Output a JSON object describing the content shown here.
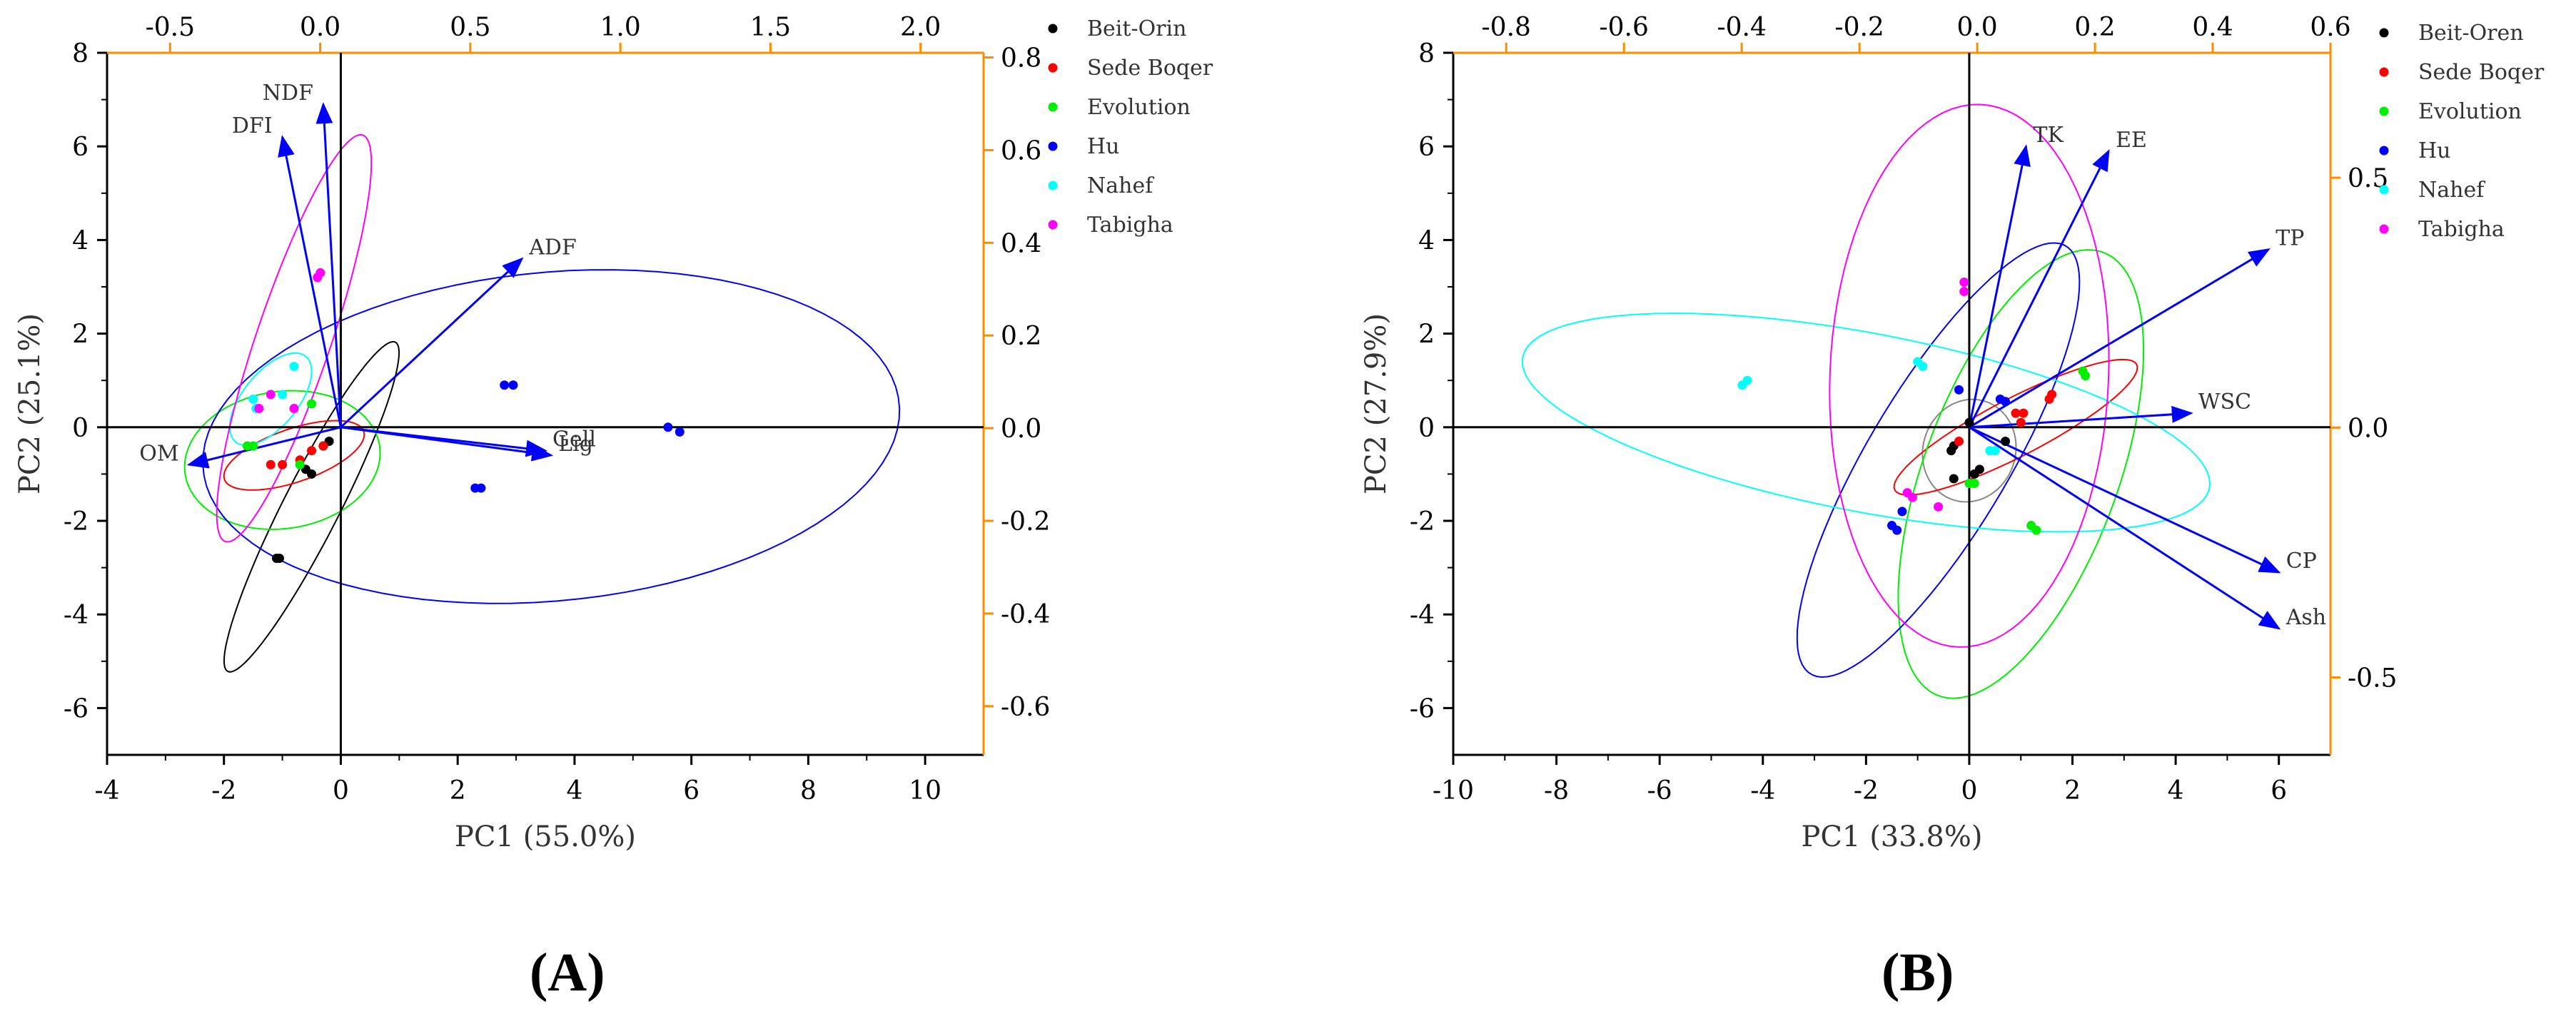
{
  "colors": {
    "axis": "#000000",
    "secondary_axis": "#FF8C00",
    "arrow": "#0000FF",
    "groups": {
      "Beit-Orin": "#000000",
      "Sede Boqer": "#FF0000",
      "Evolution": "#00EE00",
      "Hu": "#0000FF",
      "Nahef": "#00FFFF",
      "Tabigha": "#FF00FF"
    }
  },
  "chart_data": [
    {
      "type": "scatter",
      "panel_label": "(A)",
      "xlabel": "PC1 (55.0%)",
      "ylabel": "PC2 (25.1%)",
      "xlim": [
        -4,
        11
      ],
      "ylim": [
        -7,
        8
      ],
      "xticks": [
        -4,
        -2,
        0,
        2,
        4,
        6,
        8,
        10
      ],
      "yticks": [
        -6,
        -4,
        -2,
        0,
        2,
        4,
        6,
        8
      ],
      "x2lim": [
        -0.71,
        2.21
      ],
      "y2lim": [
        -0.705,
        0.81
      ],
      "x2ticks": [
        "-0.5",
        "0.0",
        "0.5",
        "1.0",
        "1.5",
        "2.0"
      ],
      "y2ticks": [
        "-0.6",
        "-0.4",
        "-0.2",
        "0.0",
        "0.2",
        "0.4",
        "0.6",
        "0.8"
      ],
      "legend": [
        "Beit-Orin",
        "Sede Boqer",
        "Evolution",
        "Hu",
        "Nahef",
        "Tabigha"
      ],
      "series": [
        {
          "name": "Beit-Orin",
          "points": [
            [
              -0.2,
              -0.3
            ],
            [
              -0.3,
              -0.4
            ],
            [
              -0.6,
              -0.9
            ],
            [
              -0.5,
              -1.0
            ],
            [
              -1.1,
              -2.8
            ],
            [
              -1.05,
              -2.8
            ]
          ]
        },
        {
          "name": "Sede Boqer",
          "points": [
            [
              -1.2,
              -0.8
            ],
            [
              -1.0,
              -0.8
            ],
            [
              -0.5,
              -0.5
            ],
            [
              -0.3,
              -0.4
            ],
            [
              -0.7,
              -0.7
            ]
          ]
        },
        {
          "name": "Evolution",
          "points": [
            [
              -1.6,
              -0.4
            ],
            [
              -1.5,
              -0.4
            ],
            [
              -0.5,
              0.5
            ],
            [
              -0.7,
              -0.8
            ]
          ]
        },
        {
          "name": "Hu",
          "points": [
            [
              2.8,
              0.9
            ],
            [
              2.95,
              0.9
            ],
            [
              2.3,
              -1.3
            ],
            [
              2.4,
              -1.3
            ],
            [
              5.6,
              0.0
            ],
            [
              5.8,
              -0.1
            ]
          ]
        },
        {
          "name": "Nahef",
          "points": [
            [
              -0.8,
              1.3
            ],
            [
              -1.0,
              0.7
            ],
            [
              -1.5,
              0.6
            ],
            [
              -1.45,
              0.4
            ]
          ]
        },
        {
          "name": "Tabigha",
          "points": [
            [
              -0.35,
              3.3
            ],
            [
              -0.4,
              3.2
            ],
            [
              -1.2,
              0.7
            ],
            [
              -0.8,
              0.4
            ],
            [
              -1.4,
              0.4
            ]
          ]
        }
      ],
      "ellipses": [
        {
          "group": "Beit-Orin",
          "center": [
            -0.5,
            -1.7
          ],
          "semi_major": 3.8,
          "semi_minor": 0.5,
          "angle_deg": 68
        },
        {
          "group": "Sede Boqer",
          "center": [
            -0.8,
            -0.6
          ],
          "semi_major": 1.3,
          "semi_minor": 0.55,
          "angle_deg": 25
        },
        {
          "group": "Evolution",
          "center": [
            -1.0,
            -0.7
          ],
          "semi_major": 1.7,
          "semi_minor": 1.45,
          "angle_deg": 20
        },
        {
          "group": "Hu",
          "center": [
            3.6,
            -0.2
          ],
          "semi_major": 6.0,
          "semi_minor": 3.5,
          "angle_deg": 8
        },
        {
          "group": "Nahef",
          "center": [
            -1.2,
            0.6
          ],
          "semi_major": 1.1,
          "semi_minor": 0.5,
          "angle_deg": 60
        },
        {
          "group": "Tabigha",
          "center": [
            -0.8,
            1.9
          ],
          "semi_major": 4.5,
          "semi_minor": 0.65,
          "angle_deg": 75
        }
      ],
      "loadings": [
        {
          "name": "NDF",
          "x": -0.3,
          "y": 6.9
        },
        {
          "name": "DFI",
          "x": -1.0,
          "y": 6.2
        },
        {
          "name": "ADF",
          "x": 3.1,
          "y": 3.6
        },
        {
          "name": "Gell",
          "x": 3.5,
          "y": -0.5
        },
        {
          "name": "Lig",
          "x": 3.6,
          "y": -0.6
        },
        {
          "name": "OM",
          "x": -2.6,
          "y": -0.8
        }
      ]
    },
    {
      "type": "scatter",
      "panel_label": "(B)",
      "xlabel": "PC1 (33.8%)",
      "ylabel": "PC2 (27.9%)",
      "xlim": [
        -10,
        7
      ],
      "ylim": [
        -7,
        8
      ],
      "xticks": [
        -10,
        -8,
        -6,
        -4,
        -2,
        0,
        2,
        4,
        6
      ],
      "yticks": [
        -6,
        -4,
        -2,
        0,
        2,
        4,
        6,
        8
      ],
      "x2lim": [
        -0.89,
        0.6
      ],
      "y2lim": [
        -0.655,
        0.75
      ],
      "x2ticks": [
        "-0.8",
        "-0.6",
        "-0.4",
        "-0.2",
        "0.0",
        "0.2",
        "0.4",
        "0.6"
      ],
      "y2ticks": [
        "-0.5",
        "0.0",
        "0.5"
      ],
      "legend": [
        "Beit-Oren",
        "Sede Boqer",
        "Evolution",
        "Hu",
        "Nahef",
        "Tabigha"
      ],
      "series": [
        {
          "name": "Beit-Oren",
          "points": [
            [
              0.0,
              0.1
            ],
            [
              -0.3,
              -0.4
            ],
            [
              -0.35,
              -0.5
            ],
            [
              -0.3,
              -1.1
            ],
            [
              0.1,
              -1.0
            ],
            [
              0.2,
              -0.9
            ],
            [
              0.7,
              -0.3
            ]
          ]
        },
        {
          "name": "Sede Boqer",
          "points": [
            [
              0.9,
              0.3
            ],
            [
              1.0,
              0.1
            ],
            [
              1.05,
              0.3
            ],
            [
              1.6,
              0.7
            ],
            [
              1.55,
              0.6
            ],
            [
              -0.2,
              -0.3
            ]
          ]
        },
        {
          "name": "Evolution",
          "points": [
            [
              2.2,
              1.2
            ],
            [
              2.25,
              1.1
            ],
            [
              1.2,
              -2.1
            ],
            [
              1.3,
              -2.2
            ],
            [
              0.0,
              -1.2
            ],
            [
              0.1,
              -1.2
            ]
          ]
        },
        {
          "name": "Hu",
          "points": [
            [
              -0.2,
              0.8
            ],
            [
              0.6,
              0.6
            ],
            [
              0.7,
              0.55
            ],
            [
              -1.5,
              -2.1
            ],
            [
              -1.4,
              -2.2
            ],
            [
              -1.3,
              -1.8
            ]
          ]
        },
        {
          "name": "Nahef",
          "points": [
            [
              -4.4,
              0.9
            ],
            [
              -4.3,
              1.0
            ],
            [
              -1.0,
              1.4
            ],
            [
              -0.9,
              1.3
            ],
            [
              0.4,
              -0.5
            ],
            [
              0.5,
              -0.5
            ]
          ]
        },
        {
          "name": "Tabigha",
          "points": [
            [
              -0.1,
              3.1
            ],
            [
              -0.1,
              2.9
            ],
            [
              -1.2,
              -1.4
            ],
            [
              -1.1,
              -1.5
            ],
            [
              -0.6,
              -1.7
            ]
          ]
        }
      ],
      "ellipses": [
        {
          "group": "Beit-Oren",
          "center": [
            0.0,
            -0.5
          ],
          "semi_major": 1.1,
          "semi_minor": 0.9,
          "angle_deg": 80
        },
        {
          "group": "Sede Boqer",
          "center": [
            0.9,
            0.0
          ],
          "semi_major": 2.7,
          "semi_minor": 0.6,
          "angle_deg": 30
        },
        {
          "group": "Evolution",
          "center": [
            1.0,
            -1.0
          ],
          "semi_major": 5.0,
          "semi_minor": 1.9,
          "angle_deg": 72
        },
        {
          "group": "Hu",
          "center": [
            -0.6,
            -0.7
          ],
          "semi_major": 5.2,
          "semi_minor": 1.4,
          "angle_deg": 62
        },
        {
          "group": "Nahef",
          "center": [
            -2.0,
            0.1
          ],
          "semi_major": 6.8,
          "semi_minor": 1.9,
          "angle_deg": -12
        },
        {
          "group": "Tabigha",
          "center": [
            0.0,
            1.1
          ],
          "semi_major": 5.8,
          "semi_minor": 2.7,
          "angle_deg": 88
        }
      ],
      "loadings": [
        {
          "name": "TK",
          "x": 1.1,
          "y": 6.0
        },
        {
          "name": "EE",
          "x": 2.7,
          "y": 5.9
        },
        {
          "name": "TP",
          "x": 5.8,
          "y": 3.8
        },
        {
          "name": "WSC",
          "x": 4.3,
          "y": 0.3
        },
        {
          "name": "CP",
          "x": 6.0,
          "y": -3.1
        },
        {
          "name": "Ash",
          "x": 6.0,
          "y": -4.3
        }
      ]
    }
  ],
  "panel_labels": {
    "a": "(A)",
    "b": "(B)"
  }
}
